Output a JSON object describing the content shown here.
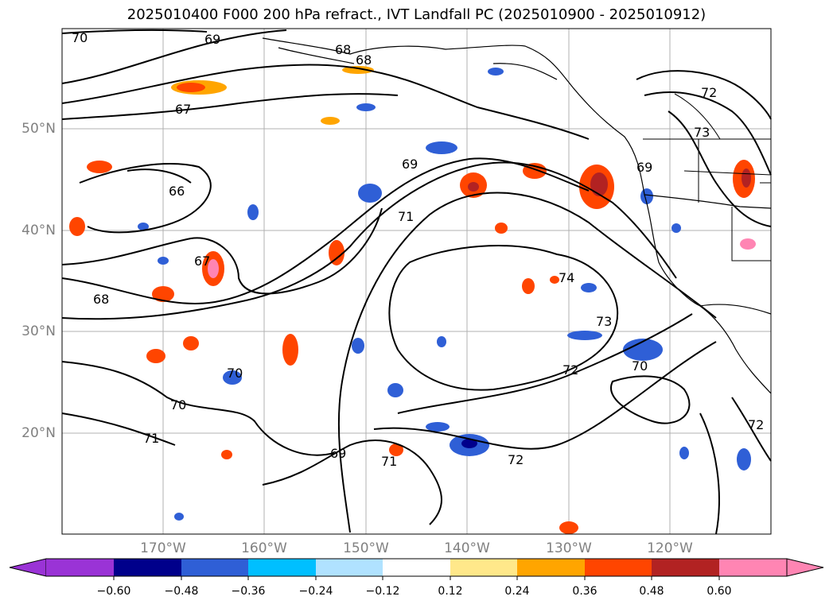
{
  "title": "2025010400 F000 200 hPa refract., IVT Landfall PC (2025010900 - 2025010912)",
  "map": {
    "lat_labels": [
      "50°N",
      "40°N",
      "30°N",
      "20°N"
    ],
    "lon_labels": [
      "170°W",
      "160°W",
      "150°W",
      "140°W",
      "130°W",
      "120°W"
    ],
    "contour_labels": [
      "70",
      "69",
      "68",
      "68",
      "67",
      "72",
      "66",
      "69",
      "71",
      "73",
      "67",
      "74",
      "68",
      "73",
      "70",
      "72",
      "70",
      "70",
      "71",
      "69",
      "71",
      "72",
      "69",
      "72"
    ]
  },
  "colorbar": {
    "ticks": [
      "−0.60",
      "−0.48",
      "−0.36",
      "−0.24",
      "−0.12",
      "0.12",
      "0.24",
      "0.36",
      "0.48",
      "0.60"
    ],
    "colors": [
      "#9a33d6",
      "#00008b",
      "#2f5fd6",
      "#00bfff",
      "#b0e2ff",
      "#ffffff",
      "#ffe88a",
      "#ffa500",
      "#ff4500",
      "#b22222",
      "#ff85b3"
    ]
  }
}
